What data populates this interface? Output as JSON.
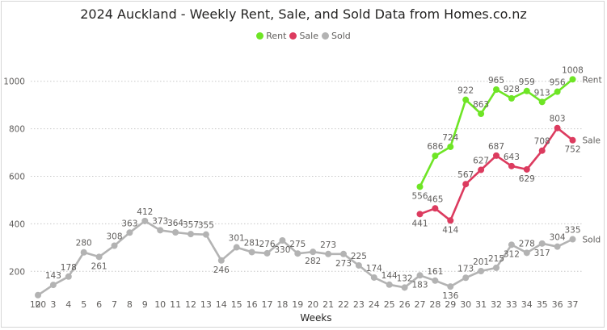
{
  "chart_data": {
    "type": "line",
    "title": "2024 Auckland - Weekly Rent, Sale, and Sold Data from Homes.co.nz",
    "xlabel": "Weeks",
    "ylabel": "",
    "x": [
      2,
      3,
      4,
      5,
      6,
      7,
      8,
      9,
      10,
      11,
      12,
      13,
      14,
      15,
      16,
      17,
      18,
      19,
      20,
      21,
      22,
      23,
      24,
      25,
      26,
      27,
      28,
      29,
      30,
      31,
      32,
      33,
      34,
      35,
      36,
      37
    ],
    "ylim": [
      100,
      1050
    ],
    "yticks": [
      200,
      400,
      600,
      800,
      1000
    ],
    "grid": true,
    "legend_position": "top-center",
    "series": [
      {
        "name": "Rent",
        "color": "#6ee525",
        "end_label": "Rent",
        "x": [
          27,
          28,
          29,
          30,
          31,
          32,
          33,
          34,
          35,
          36,
          37
        ],
        "values": [
          556,
          686,
          724,
          922,
          863,
          965,
          928,
          959,
          913,
          956,
          1008
        ]
      },
      {
        "name": "Sale",
        "color": "#dc3b5f",
        "end_label": "Sale",
        "x": [
          27,
          28,
          29,
          30,
          31,
          32,
          33,
          34,
          35,
          36,
          37
        ],
        "values": [
          441,
          465,
          414,
          567,
          627,
          687,
          643,
          629,
          708,
          803,
          752
        ]
      },
      {
        "name": "Sold",
        "color": "#b3b3b3",
        "end_label": "Sold",
        "x": [
          2,
          3,
          4,
          5,
          6,
          7,
          8,
          9,
          10,
          11,
          12,
          13,
          14,
          15,
          16,
          17,
          18,
          19,
          20,
          21,
          22,
          23,
          24,
          25,
          26,
          27,
          28,
          29,
          30,
          31,
          32,
          33,
          34,
          35,
          36,
          37
        ],
        "values": [
          100,
          143,
          178,
          280,
          261,
          308,
          363,
          412,
          373,
          364,
          357,
          355,
          246,
          301,
          281,
          276,
          330,
          275,
          282,
          273,
          273,
          225,
          174,
          144,
          132,
          183,
          161,
          136,
          173,
          201,
          215,
          312,
          278,
          317,
          304,
          335
        ]
      }
    ]
  }
}
